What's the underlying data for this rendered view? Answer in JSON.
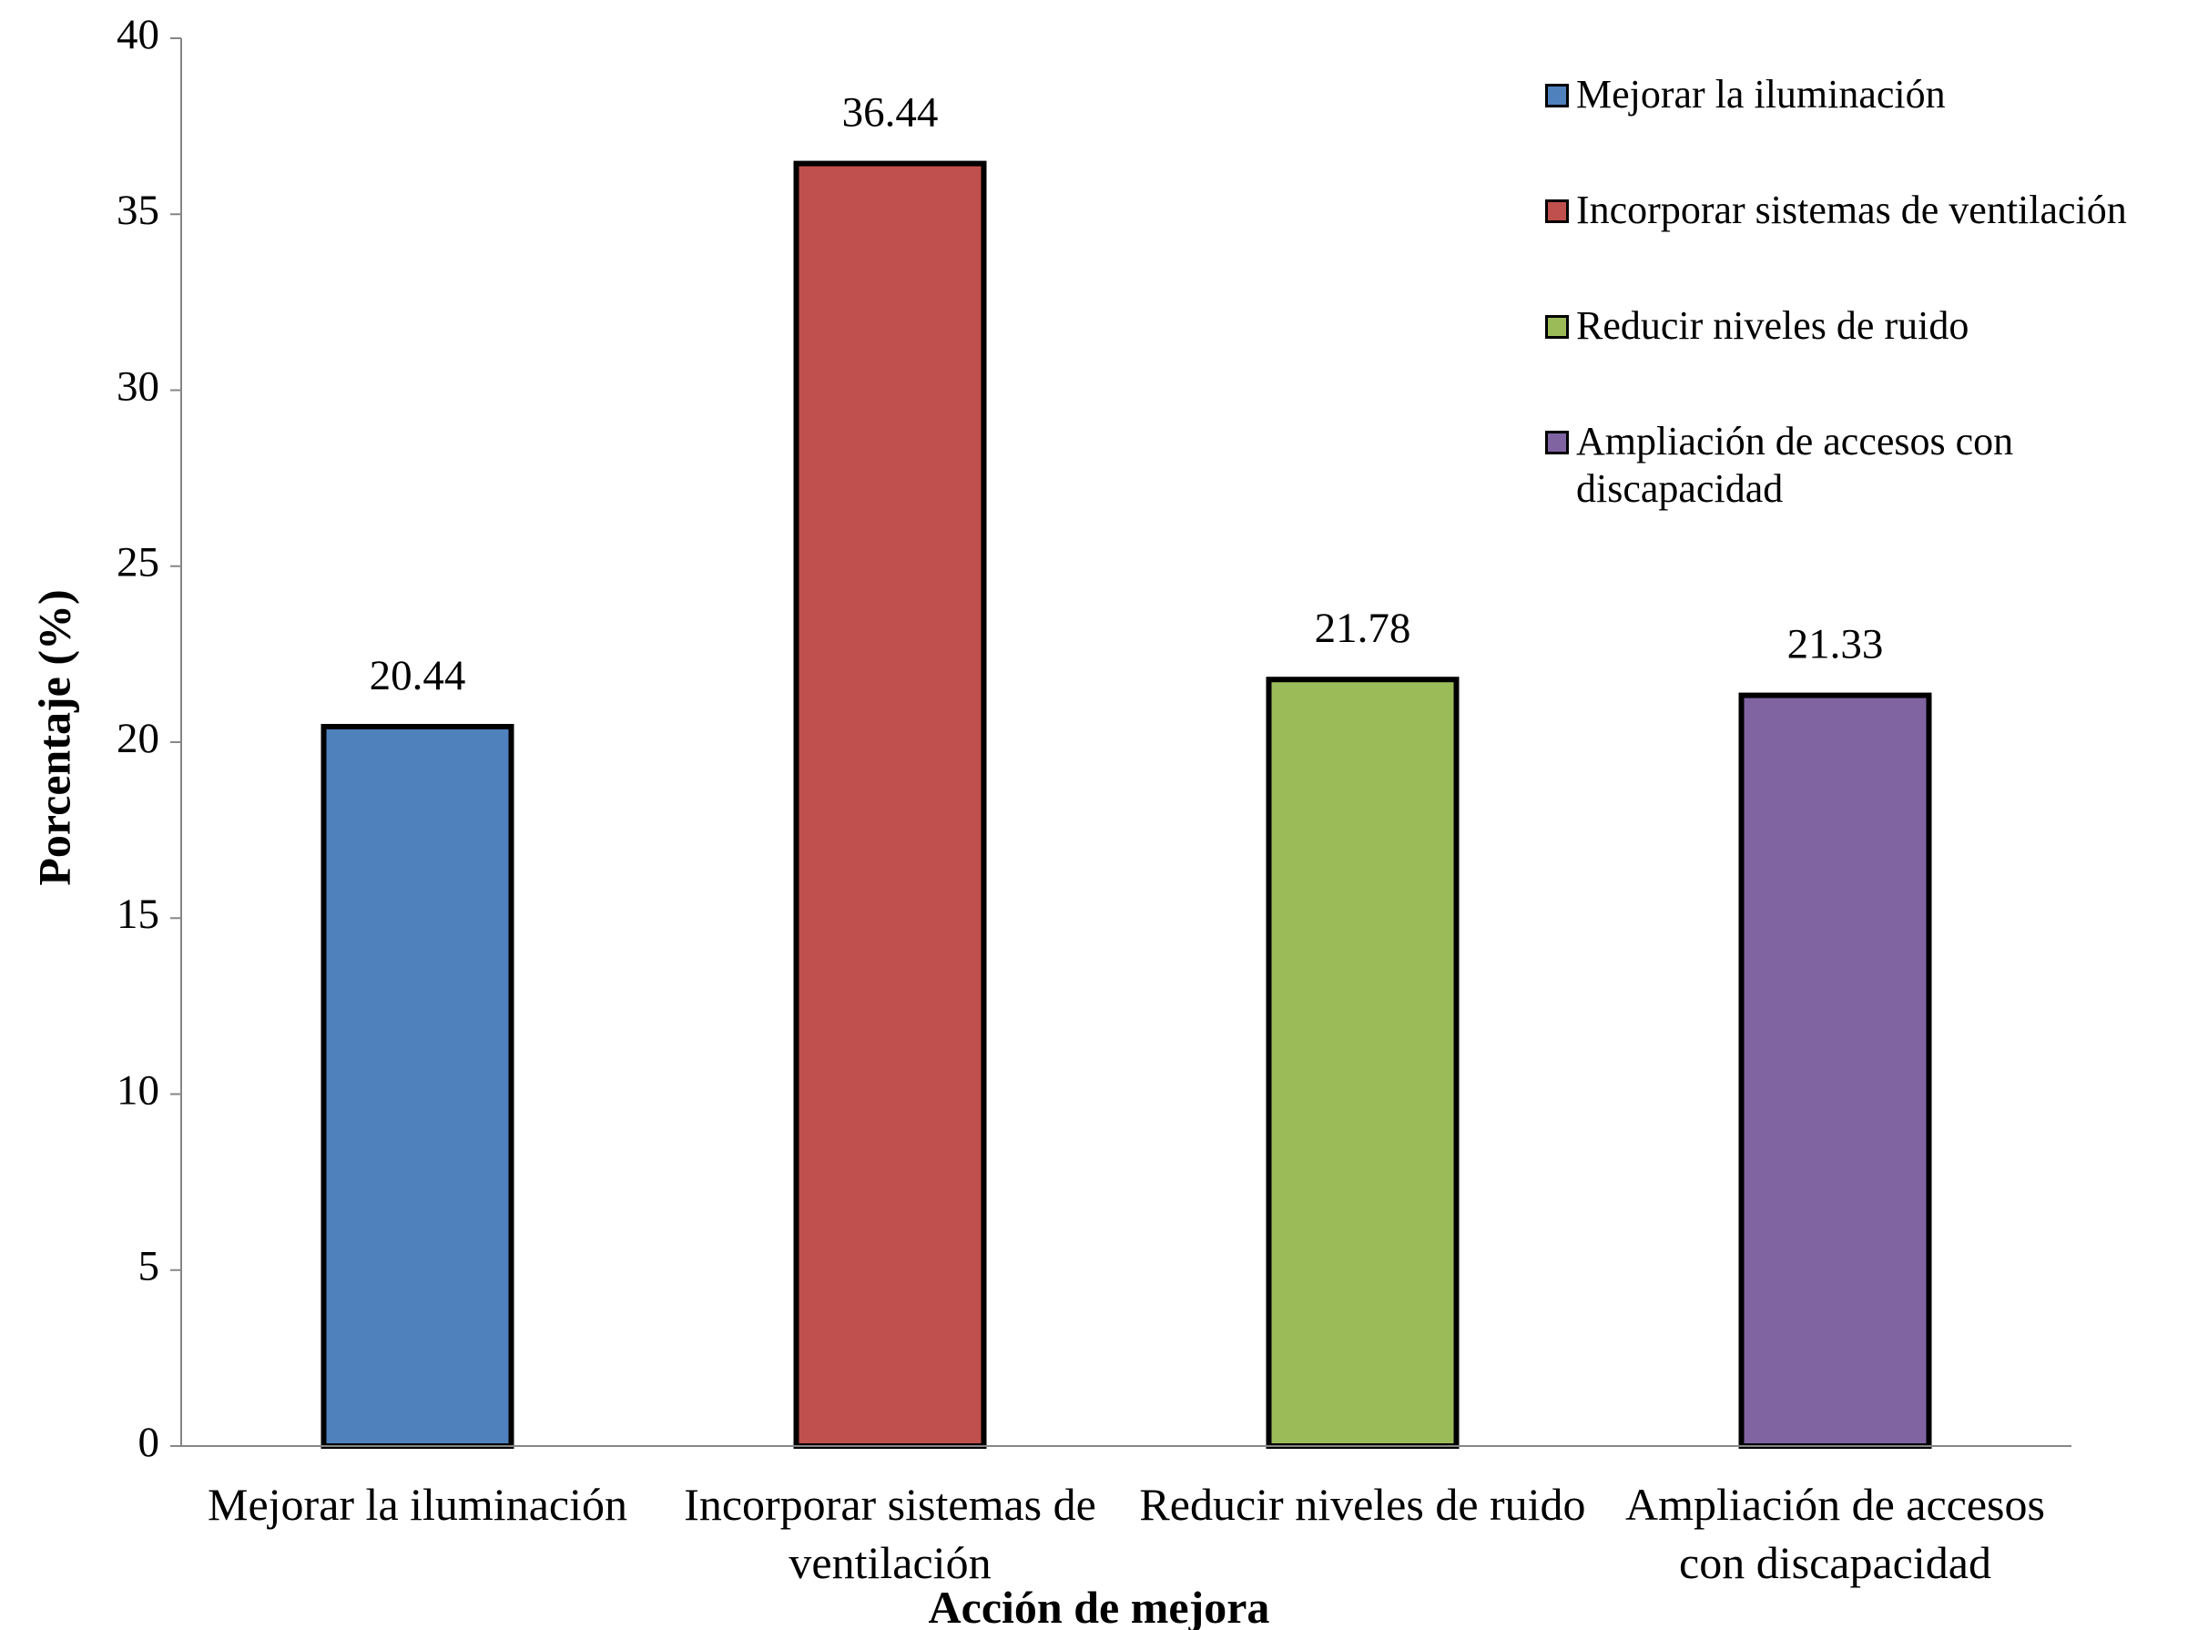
{
  "chart_data": {
    "type": "bar",
    "x_label": "Acción de mejora",
    "y_label": "Porcentaje (%)",
    "categories": [
      "Mejorar la iluminación",
      "Incorporar sistemas de ventilación",
      "Reducir niveles de ruido",
      "Ampliación de accesos con discapacidad"
    ],
    "values": [
      20.44,
      36.44,
      21.78,
      21.33
    ],
    "colors": [
      "#4f81bd",
      "#c0504d",
      "#9bbb59",
      "#8064a2"
    ],
    "ylim": [
      0,
      40
    ],
    "yticks": [
      0,
      5,
      10,
      15,
      20,
      25,
      30,
      35,
      40
    ],
    "legend": "top-right"
  }
}
